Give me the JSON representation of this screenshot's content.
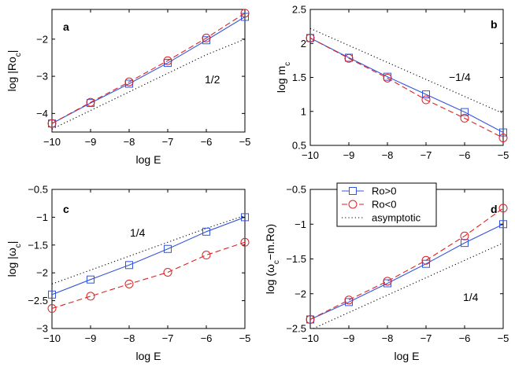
{
  "colors": {
    "ro_pos": "#3355dd",
    "ro_neg": "#dd2222",
    "asymptotic": "#000000"
  },
  "legend": {
    "entries": [
      "Ro>0",
      "Ro<0",
      "asymptotic"
    ],
    "panel": "d"
  },
  "chart_data": [
    {
      "type": "line",
      "panel_label": "a",
      "xlabel": "log E",
      "ylabel": "log |Ro",
      "ylabel_sub": "c",
      "ylabel_end": "|",
      "xlim": [
        -10,
        -5
      ],
      "ylim": [
        -4.5,
        -1.2
      ],
      "xticks": [
        -10,
        -9,
        -8,
        -7,
        -6,
        -5
      ],
      "yticks": [
        -4,
        -3,
        -2
      ],
      "slope_label": "1/2",
      "x": [
        -10,
        -9,
        -8,
        -7,
        -6,
        -5
      ],
      "series": [
        {
          "name": "Ro>0",
          "values": [
            -4.27,
            -3.72,
            -3.2,
            -2.64,
            -2.03,
            -1.4
          ]
        },
        {
          "name": "Ro<0",
          "values": [
            -4.27,
            -3.7,
            -3.15,
            -2.58,
            -1.97,
            -1.3
          ]
        },
        {
          "name": "asymptotic",
          "values": [
            -4.42,
            -3.92,
            -3.42,
            -2.92,
            -2.42,
            -2.0
          ]
        }
      ]
    },
    {
      "type": "line",
      "panel_label": "b",
      "xlabel": "",
      "ylabel": "log m",
      "ylabel_sub": "c",
      "ylabel_end": "",
      "xlim": [
        -10,
        -5
      ],
      "ylim": [
        0.5,
        2.5
      ],
      "xticks": [
        -10,
        -9,
        -8,
        -7,
        -6,
        -5
      ],
      "yticks": [
        0.5,
        1,
        1.5,
        2,
        2.5
      ],
      "slope_label": "−1/4",
      "x": [
        -10,
        -9,
        -8,
        -7,
        -6,
        -5
      ],
      "series": [
        {
          "name": "Ro>0",
          "values": [
            2.08,
            1.79,
            1.51,
            1.25,
            0.99,
            0.69
          ]
        },
        {
          "name": "Ro<0",
          "values": [
            2.08,
            1.78,
            1.49,
            1.17,
            0.9,
            0.61
          ]
        },
        {
          "name": "asymptotic",
          "values": [
            2.22,
            1.97,
            1.72,
            1.47,
            1.22,
            0.97
          ]
        }
      ]
    },
    {
      "type": "line",
      "panel_label": "c",
      "xlabel": "log E",
      "ylabel": "log |ω",
      "ylabel_sub": "c",
      "ylabel_end": "|",
      "xlim": [
        -10,
        -5
      ],
      "ylim": [
        -3,
        -0.5
      ],
      "xticks": [
        -10,
        -9,
        -8,
        -7,
        -6,
        -5
      ],
      "yticks": [
        -3,
        -2.5,
        -2,
        -1.5,
        -1,
        -0.5
      ],
      "slope_label": "1/4",
      "x": [
        -10,
        -9,
        -8,
        -7,
        -6,
        -5
      ],
      "series": [
        {
          "name": "Ro>0",
          "values": [
            -2.39,
            -2.12,
            -1.86,
            -1.57,
            -1.26,
            -1.0
          ]
        },
        {
          "name": "Ro<0",
          "values": [
            -2.64,
            -2.42,
            -2.2,
            -1.99,
            -1.68,
            -1.45
          ]
        },
        {
          "name": "asymptotic",
          "values": [
            -2.2,
            -1.95,
            -1.7,
            -1.45,
            -1.2,
            -0.97
          ]
        }
      ]
    },
    {
      "type": "line",
      "panel_label": "d",
      "xlabel": "log E",
      "ylabel": "log (ω",
      "ylabel_sub": "c",
      "ylabel_end": "−m.Ro)",
      "xlim": [
        -10,
        -5
      ],
      "ylim": [
        -2.5,
        -0.5
      ],
      "xticks": [
        -10,
        -9,
        -8,
        -7,
        -6,
        -5
      ],
      "yticks": [
        -2.5,
        -2,
        -1.5,
        -1,
        -0.5
      ],
      "slope_label": "1/4",
      "x": [
        -10,
        -9,
        -8,
        -7,
        -6,
        -5
      ],
      "series": [
        {
          "name": "Ro>0",
          "values": [
            -2.37,
            -2.12,
            -1.85,
            -1.57,
            -1.27,
            -1.0
          ]
        },
        {
          "name": "Ro<0",
          "values": [
            -2.37,
            -2.09,
            -1.82,
            -1.52,
            -1.17,
            -0.77
          ]
        },
        {
          "name": "asymptotic",
          "values": [
            -2.52,
            -2.27,
            -2.02,
            -1.77,
            -1.52,
            -1.27
          ]
        }
      ]
    }
  ]
}
